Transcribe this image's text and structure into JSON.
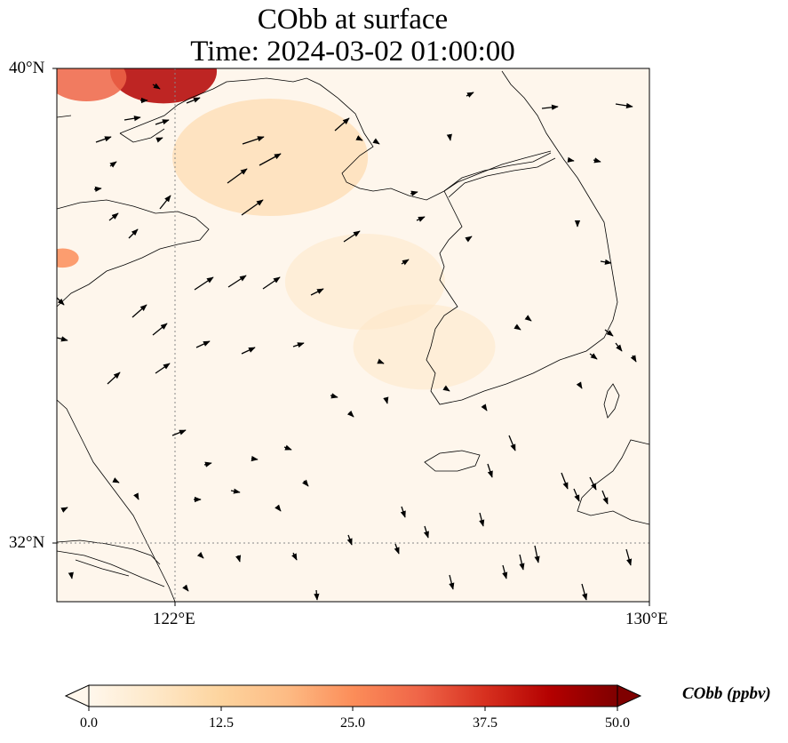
{
  "title": {
    "line1": "CObb at surface",
    "line2": "Time: 2024-03-02 01:00:00"
  },
  "map": {
    "lon_range": [
      120,
      130
    ],
    "lat_range": [
      31,
      40
    ],
    "gridlines": {
      "lon": [
        122
      ],
      "lat": [
        32
      ],
      "style": "dotted"
    },
    "lat_labels": [
      {
        "text": "40°N",
        "lat": 40
      },
      {
        "text": "32°N",
        "lat": 32
      }
    ],
    "lon_labels": [
      {
        "text": "122°E",
        "lon": 122
      },
      {
        "text": "130°E",
        "lon": 130
      }
    ],
    "field_name": "CObb",
    "field_units": "ppbv",
    "hotspots": [
      {
        "lon": 121.8,
        "lat": 39.95,
        "value": 45
      },
      {
        "lon": 120.5,
        "lat": 39.85,
        "value": 30
      },
      {
        "lon": 120.1,
        "lat": 36.8,
        "value": 28
      },
      {
        "lon": 123.6,
        "lat": 38.5,
        "value": 10
      },
      {
        "lon": 125.2,
        "lat": 36.4,
        "value": 8
      },
      {
        "lon": 126.2,
        "lat": 35.3,
        "value": 7
      }
    ]
  },
  "wind_vectors_legend": "black arrows",
  "colorbar": {
    "label": "CObb (ppbv)",
    "ticks": [
      "0.0",
      "12.5",
      "25.0",
      "37.5",
      "50.0"
    ],
    "min": 0,
    "max": 50,
    "colormap": "OrRd",
    "colors": [
      "#fff7ec",
      "#fee8c8",
      "#fdd49e",
      "#fdbb84",
      "#fc8d59",
      "#ef6548",
      "#d7301f",
      "#b30000",
      "#7f0000"
    ]
  }
}
